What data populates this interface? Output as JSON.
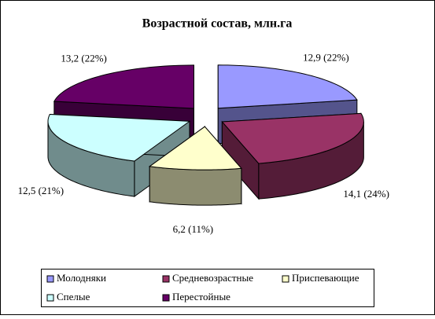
{
  "chart_data": {
    "type": "pie3d",
    "title": "Возрастной состав, млн.га",
    "categories": [
      "Молодняки",
      "Средневозрастные",
      "Приспевающие",
      "Спелые",
      "Перестойные"
    ],
    "values": [
      12.9,
      14.1,
      6.2,
      12.5,
      13.2
    ],
    "value_labels": [
      "12,9 (22%)",
      "14,1 (24%)",
      "6,2 (11%)",
      "12,5 (21%)",
      "13,2 (22%)"
    ],
    "colors": [
      "#9999ff",
      "#993366",
      "#ffffcc",
      "#ccffff",
      "#660066"
    ],
    "legend": "bottom"
  }
}
